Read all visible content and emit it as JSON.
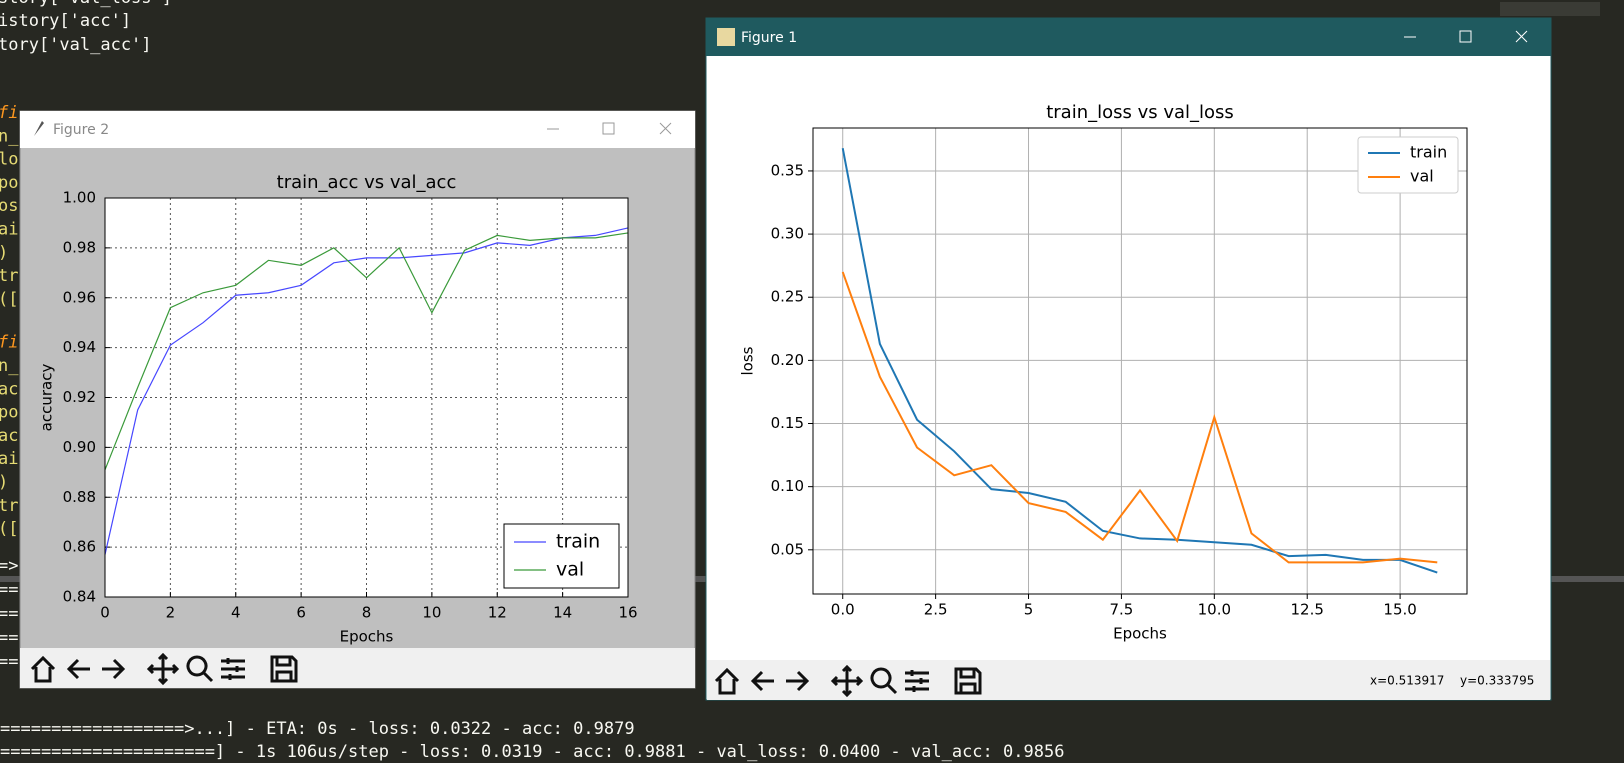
{
  "editor": {
    "lines": [
      "story['val_loss']",
      "istory['acc']",
      "tory['val_acc']"
    ],
    "fragments": [
      "fi",
      "n_",
      "lo",
      "po",
      "os",
      "ai",
      ")",
      "tr",
      "([",
      "fi",
      "n_",
      "ac",
      "po",
      "ac",
      "ai",
      ")",
      "tr",
      "(["
    ]
  },
  "terminal": {
    "fragments": [
      "=>",
      "==",
      "==",
      "==",
      "=="
    ],
    "lines": [
      "==================>...] - ETA: 0s - loss: 0.0322 - acc: 0.9879",
      "=====================] - 1s 106us/step - loss: 0.0319 - acc: 0.9881 - val_loss: 0.0400 - val_acc: 0.9856"
    ]
  },
  "windows": [
    {
      "title": "Figure 2"
    },
    {
      "title": "Figure 1",
      "status": [
        "x=0.513917",
        "y=0.333795"
      ]
    }
  ],
  "chart_data": [
    {
      "type": "line",
      "title": "train_acc vs val_acc",
      "xlabel": "Epochs",
      "ylabel": "accuracy",
      "x": [
        0,
        1,
        2,
        3,
        4,
        5,
        6,
        7,
        8,
        9,
        10,
        11,
        12,
        13,
        14,
        15,
        16
      ],
      "series": [
        {
          "name": "train",
          "color": "#4747ff",
          "values": [
            0.857,
            0.915,
            0.941,
            0.95,
            0.961,
            0.962,
            0.965,
            0.974,
            0.976,
            0.976,
            0.977,
            0.978,
            0.982,
            0.981,
            0.984,
            0.985,
            0.988
          ]
        },
        {
          "name": "val",
          "color": "#3a9a3a",
          "values": [
            0.891,
            0.924,
            0.956,
            0.962,
            0.965,
            0.975,
            0.973,
            0.98,
            0.968,
            0.98,
            0.954,
            0.979,
            0.985,
            0.983,
            0.984,
            0.984,
            0.986
          ]
        }
      ],
      "xlim": [
        0,
        16
      ],
      "xticks": [
        0,
        2,
        4,
        6,
        8,
        10,
        12,
        14,
        16
      ],
      "ylim": [
        0.84,
        1.0
      ],
      "yticks": [
        0.84,
        0.86,
        0.88,
        {
          "value": 0.9,
          "label": "0.90"
        },
        0.92,
        0.94,
        0.96,
        0.98,
        {
          "value": 1.0,
          "label": "1.00"
        }
      ],
      "grid": true,
      "legend": "lower right"
    },
    {
      "type": "line",
      "title": "train_loss vs val_loss",
      "xlabel": "Epochs",
      "ylabel": "loss",
      "x": [
        0,
        1,
        2,
        3,
        4,
        5,
        6,
        7,
        8,
        9,
        10,
        11,
        12,
        13,
        14,
        15,
        16
      ],
      "series": [
        {
          "name": "train",
          "color": "#1f77b4",
          "values": [
            0.368,
            0.213,
            0.153,
            0.128,
            0.098,
            0.095,
            0.088,
            0.065,
            0.059,
            0.058,
            0.056,
            0.054,
            0.045,
            0.046,
            0.042,
            0.042,
            0.032
          ]
        },
        {
          "name": "val",
          "color": "#ff7f0e",
          "values": [
            0.27,
            0.187,
            0.131,
            0.109,
            0.117,
            0.087,
            0.08,
            0.058,
            0.097,
            0.057,
            0.155,
            0.063,
            0.04,
            0.04,
            0.04,
            0.043,
            0.04
          ]
        }
      ],
      "xlim": [
        -0.8,
        16.8
      ],
      "xticks": [
        {
          "value": 0,
          "label": "0.0"
        },
        2.5,
        5,
        {
          "value": 7.5,
          "label": "7.5"
        },
        {
          "value": 10,
          "label": "10.0"
        },
        12.5,
        {
          "value": 15,
          "label": "15.0"
        }
      ],
      "ylim": [
        0.015,
        0.384
      ],
      "yticks": [
        0.05,
        {
          "value": 0.1,
          "label": "0.10"
        },
        0.15,
        {
          "value": 0.2,
          "label": "0.20"
        },
        0.25,
        {
          "value": 0.3,
          "label": "0.30"
        },
        0.35
      ],
      "grid": true,
      "legend": "upper right"
    }
  ]
}
